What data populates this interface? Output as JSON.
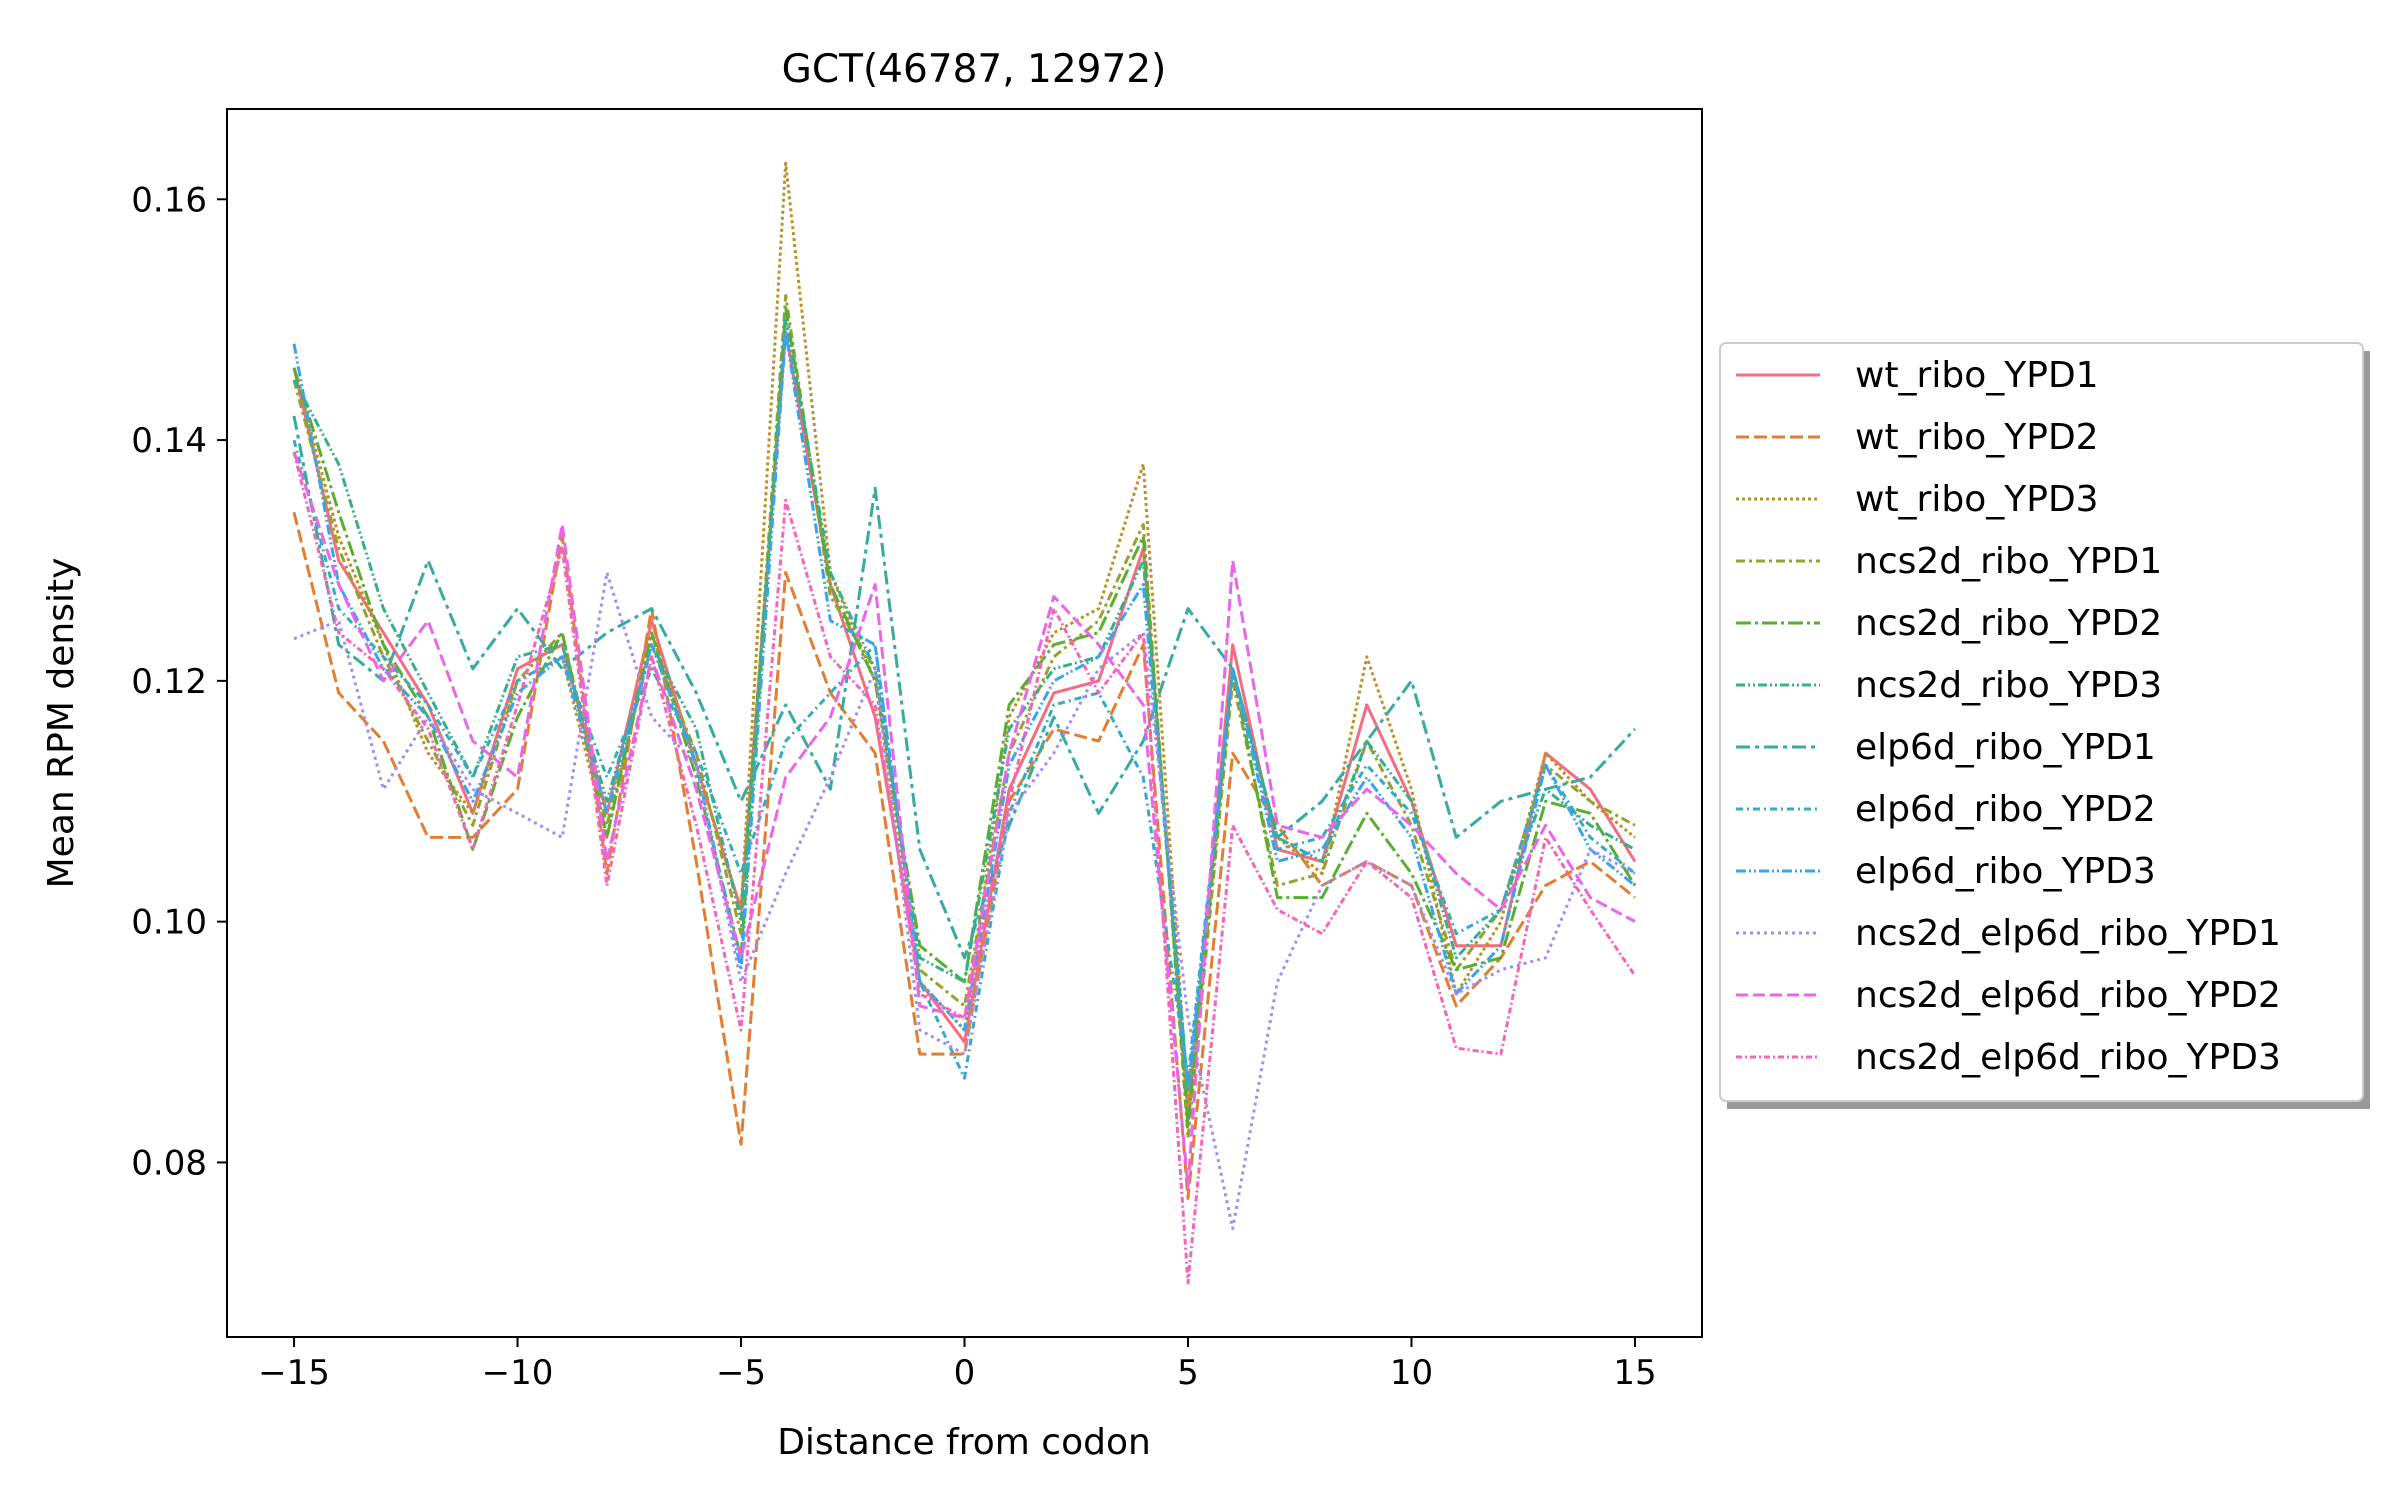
{
  "chart_data": {
    "type": "line",
    "title": "GCT(46787, 12972)",
    "xlabel": "Distance from codon",
    "ylabel": "Mean RPM density",
    "xlim": [
      -16.5,
      16.5
    ],
    "ylim": [
      0.0655,
      0.1675
    ],
    "xticks": [
      -15,
      -10,
      -5,
      0,
      5,
      10,
      15
    ],
    "xtick_labels": [
      "−15",
      "−10",
      "−5",
      "0",
      "5",
      "10",
      "15"
    ],
    "yticks": [
      0.08,
      0.1,
      0.12,
      0.14,
      0.16
    ],
    "ytick_labels": [
      "0.08",
      "0.10",
      "0.12",
      "0.14",
      "0.16"
    ],
    "grid": false,
    "legend_position": "right, outside plot",
    "x": [
      -15,
      -14,
      -13,
      -12,
      -11,
      -10,
      -9,
      -8,
      -7,
      -6,
      -5,
      -4,
      -3,
      -2,
      -1,
      0,
      1,
      2,
      3,
      4,
      5,
      6,
      7,
      8,
      9,
      10,
      11,
      12,
      13,
      14,
      15
    ],
    "series": [
      {
        "name": "wt_ribo_YPD1",
        "color": "#f66c7f",
        "dash": "",
        "values": [
          0.146,
          0.13,
          0.124,
          0.118,
          0.109,
          0.121,
          0.123,
          0.109,
          0.125,
          0.113,
          0.101,
          0.149,
          0.128,
          0.117,
          0.095,
          0.09,
          0.111,
          0.119,
          0.12,
          0.131,
          0.084,
          0.123,
          0.106,
          0.105,
          0.118,
          0.11,
          0.098,
          0.098,
          0.114,
          0.111,
          0.105
        ]
      },
      {
        "name": "wt_ribo_YPD2",
        "color": "#e07f33",
        "dash": "13,5",
        "values": [
          0.134,
          0.119,
          0.115,
          0.107,
          0.107,
          0.111,
          0.132,
          0.104,
          0.126,
          0.105,
          0.0815,
          0.129,
          0.119,
          0.114,
          0.089,
          0.089,
          0.11,
          0.116,
          0.115,
          0.123,
          0.077,
          0.114,
          0.108,
          0.103,
          0.105,
          0.103,
          0.093,
          0.097,
          0.103,
          0.105,
          0.102
        ]
      },
      {
        "name": "wt_ribo_YPD3",
        "color": "#bb9029",
        "dash": "3,3",
        "values": [
          0.146,
          0.132,
          0.123,
          0.114,
          0.109,
          0.12,
          0.122,
          0.107,
          0.124,
          0.113,
          0.101,
          0.163,
          0.129,
          0.12,
          0.095,
          0.091,
          0.117,
          0.124,
          0.126,
          0.138,
          0.085,
          0.121,
          0.107,
          0.104,
          0.122,
          0.111,
          0.094,
          0.1,
          0.114,
          0.11,
          0.107
        ]
      },
      {
        "name": "ncs2d_ribo_YPD1",
        "color": "#96a130",
        "dash": "9,4,3,4",
        "values": [
          0.145,
          0.131,
          0.122,
          0.115,
          0.108,
          0.12,
          0.124,
          0.108,
          0.123,
          0.114,
          0.099,
          0.152,
          0.127,
          0.121,
          0.096,
          0.093,
          0.114,
          0.122,
          0.125,
          0.133,
          0.082,
          0.12,
          0.103,
          0.104,
          0.115,
          0.108,
          0.096,
          0.101,
          0.113,
          0.11,
          0.108
        ]
      },
      {
        "name": "ncs2d_ribo_YPD2",
        "color": "#5aad32",
        "dash": "15,4,3,4",
        "values": [
          0.146,
          0.134,
          0.123,
          0.117,
          0.106,
          0.117,
          0.124,
          0.107,
          0.124,
          0.112,
          0.097,
          0.151,
          0.128,
          0.12,
          0.098,
          0.095,
          0.118,
          0.123,
          0.124,
          0.132,
          0.083,
          0.121,
          0.102,
          0.102,
          0.109,
          0.104,
          0.096,
          0.097,
          0.11,
          0.109,
          0.103
        ]
      },
      {
        "name": "ncs2d_ribo_YPD3",
        "color": "#37ae8d",
        "dash": "9,3,2,3,2,3",
        "values": [
          0.145,
          0.138,
          0.126,
          0.119,
          0.112,
          0.122,
          0.123,
          0.11,
          0.123,
          0.116,
          0.1,
          0.15,
          0.129,
          0.121,
          0.097,
          0.095,
          0.116,
          0.121,
          0.122,
          0.13,
          0.086,
          0.121,
          0.107,
          0.105,
          0.115,
          0.11,
          0.097,
          0.101,
          0.111,
          0.108,
          0.106
        ]
      },
      {
        "name": "elp6d_ribo_YPD1",
        "color": "#38aaa0",
        "dash": "14,5,4,5",
        "values": [
          0.142,
          0.123,
          0.12,
          0.13,
          0.121,
          0.126,
          0.121,
          0.124,
          0.126,
          0.119,
          0.11,
          0.118,
          0.111,
          0.136,
          0.106,
          0.097,
          0.108,
          0.117,
          0.109,
          0.115,
          0.126,
          0.121,
          0.107,
          0.11,
          0.115,
          0.12,
          0.107,
          0.11,
          0.111,
          0.112,
          0.116
        ]
      },
      {
        "name": "elp6d_ribo_YPD2",
        "color": "#38a9c5",
        "dash": "7,4,2,4",
        "values": [
          0.14,
          0.126,
          0.122,
          0.118,
          0.112,
          0.12,
          0.122,
          0.112,
          0.121,
          0.114,
          0.104,
          0.115,
          0.119,
          0.123,
          0.095,
          0.087,
          0.109,
          0.118,
          0.119,
          0.112,
          0.087,
          0.121,
          0.106,
          0.107,
          0.113,
          0.109,
          0.099,
          0.101,
          0.113,
          0.107,
          0.104
        ]
      },
      {
        "name": "elp6d_ribo_YPD3",
        "color": "#3ba3ec",
        "dash": "10,3,2,3,2,3",
        "values": [
          0.148,
          0.128,
          0.121,
          0.117,
          0.11,
          0.119,
          0.122,
          0.109,
          0.123,
          0.113,
          0.096,
          0.149,
          0.125,
          0.123,
          0.095,
          0.091,
          0.113,
          0.12,
          0.122,
          0.128,
          0.086,
          0.121,
          0.105,
          0.106,
          0.112,
          0.107,
          0.094,
          0.098,
          0.113,
          0.106,
          0.103
        ]
      },
      {
        "name": "ncs2d_elp6d_ribo_YPD1",
        "color": "#a48cf4",
        "dash": "3,4",
        "values": [
          0.1235,
          0.125,
          0.111,
          0.117,
          0.111,
          0.109,
          0.107,
          0.129,
          0.117,
          0.113,
          0.095,
          0.104,
          0.112,
          0.121,
          0.091,
          0.089,
          0.109,
          0.114,
          0.121,
          0.124,
          0.092,
          0.0745,
          0.095,
          0.103,
          0.105,
          0.103,
          0.094,
          0.096,
          0.097,
          0.106,
          0.104
        ]
      },
      {
        "name": "ncs2d_elp6d_ribo_YPD2",
        "color": "#e867e8",
        "dash": "12,5",
        "values": [
          0.139,
          0.128,
          0.12,
          0.125,
          0.115,
          0.112,
          0.133,
          0.105,
          0.122,
          0.111,
          0.097,
          0.112,
          0.117,
          0.128,
          0.093,
          0.092,
          0.114,
          0.127,
          0.123,
          0.118,
          0.078,
          0.13,
          0.108,
          0.107,
          0.111,
          0.108,
          0.104,
          0.101,
          0.108,
          0.102,
          0.1
        ]
      },
      {
        "name": "ncs2d_elp6d_ribo_YPD3",
        "color": "#f565b4",
        "dash": "6,3,2,3",
        "values": [
          0.139,
          0.124,
          0.121,
          0.116,
          0.106,
          0.118,
          0.131,
          0.103,
          0.122,
          0.108,
          0.091,
          0.135,
          0.122,
          0.118,
          0.094,
          0.092,
          0.11,
          0.126,
          0.119,
          0.124,
          0.07,
          0.108,
          0.101,
          0.099,
          0.105,
          0.102,
          0.0895,
          0.089,
          0.107,
          0.101,
          0.0955
        ]
      }
    ]
  }
}
